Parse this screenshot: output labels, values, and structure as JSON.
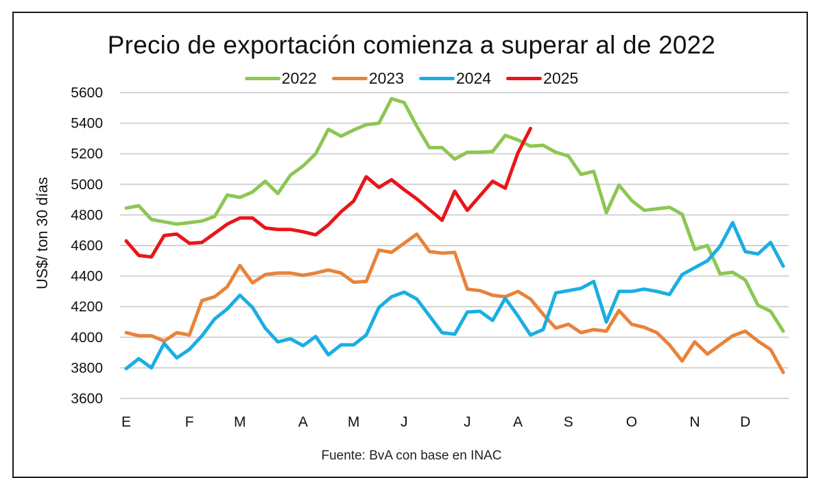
{
  "chart_data": {
    "type": "line",
    "title": "Precio de exportación comienza a superar al de 2022",
    "xlabel": "",
    "ylabel": "US$/ ton 30 días",
    "ylim": [
      3600,
      5600
    ],
    "yticks": [
      5600,
      5400,
      5200,
      5000,
      4800,
      4600,
      4400,
      4200,
      4000,
      3800,
      3600
    ],
    "month_labels": [
      "E",
      "F",
      "M",
      "A",
      "M",
      "J",
      "J",
      "A",
      "S",
      "O",
      "N",
      "D"
    ],
    "month_label_week_index": [
      0,
      5,
      9,
      14,
      18,
      22,
      27,
      31,
      35,
      40,
      45,
      49
    ],
    "x_points": 53,
    "grid": true,
    "legend_position": "top",
    "source": "Fuente: BvA con base en INAC",
    "series": [
      {
        "name": "2022",
        "color": "#8DC653",
        "values": [
          4845,
          4860,
          4770,
          4755,
          4740,
          4750,
          4760,
          4790,
          4930,
          4915,
          4950,
          5020,
          4940,
          5060,
          5120,
          5200,
          5360,
          5315,
          5355,
          5390,
          5400,
          5560,
          5535,
          5380,
          5240,
          5240,
          5165,
          5210,
          5210,
          5215,
          5320,
          5290,
          5250,
          5255,
          5210,
          5185,
          5065,
          5085,
          4815,
          4995,
          4895,
          4830,
          4840,
          4850,
          4805,
          4575,
          4600,
          4415,
          4425,
          4375,
          4210,
          4170,
          4040
        ]
      },
      {
        "name": "2023",
        "color": "#E8833A",
        "values": [
          4030,
          4010,
          4010,
          3975,
          4030,
          4015,
          4240,
          4265,
          4330,
          4470,
          4355,
          4410,
          4420,
          4420,
          4405,
          4420,
          4440,
          4420,
          4360,
          4365,
          4570,
          4555,
          4615,
          4675,
          4560,
          4550,
          4555,
          4315,
          4305,
          4275,
          4265,
          4300,
          4250,
          4150,
          4060,
          4085,
          4030,
          4050,
          4040,
          4175,
          4085,
          4065,
          4030,
          3950,
          3845,
          3970,
          3890,
          3950,
          4010,
          4040,
          3975,
          3920,
          3770
        ]
      },
      {
        "name": "2024",
        "color": "#1AAEE3",
        "values": [
          3795,
          3860,
          3800,
          3960,
          3865,
          3920,
          4010,
          4120,
          4185,
          4275,
          4195,
          4060,
          3970,
          3990,
          3945,
          4005,
          3885,
          3950,
          3950,
          4015,
          4195,
          4265,
          4295,
          4250,
          4140,
          4030,
          4020,
          4165,
          4170,
          4110,
          4255,
          4140,
          4015,
          4050,
          4290,
          4305,
          4320,
          4365,
          4100,
          4300,
          4300,
          4315,
          4300,
          4280,
          4410,
          4455,
          4500,
          4595,
          4750,
          4560,
          4545,
          4620,
          4465
        ]
      },
      {
        "name": "2025",
        "color": "#E8161A",
        "values": [
          4630,
          4535,
          4525,
          4665,
          4675,
          4615,
          4620,
          4680,
          4740,
          4780,
          4780,
          4715,
          4705,
          4705,
          4690,
          4670,
          4735,
          4820,
          4890,
          5050,
          4980,
          5030,
          4965,
          4905,
          4835,
          4765,
          4955,
          4830,
          4925,
          5020,
          4975,
          5205,
          5365
        ]
      }
    ]
  }
}
